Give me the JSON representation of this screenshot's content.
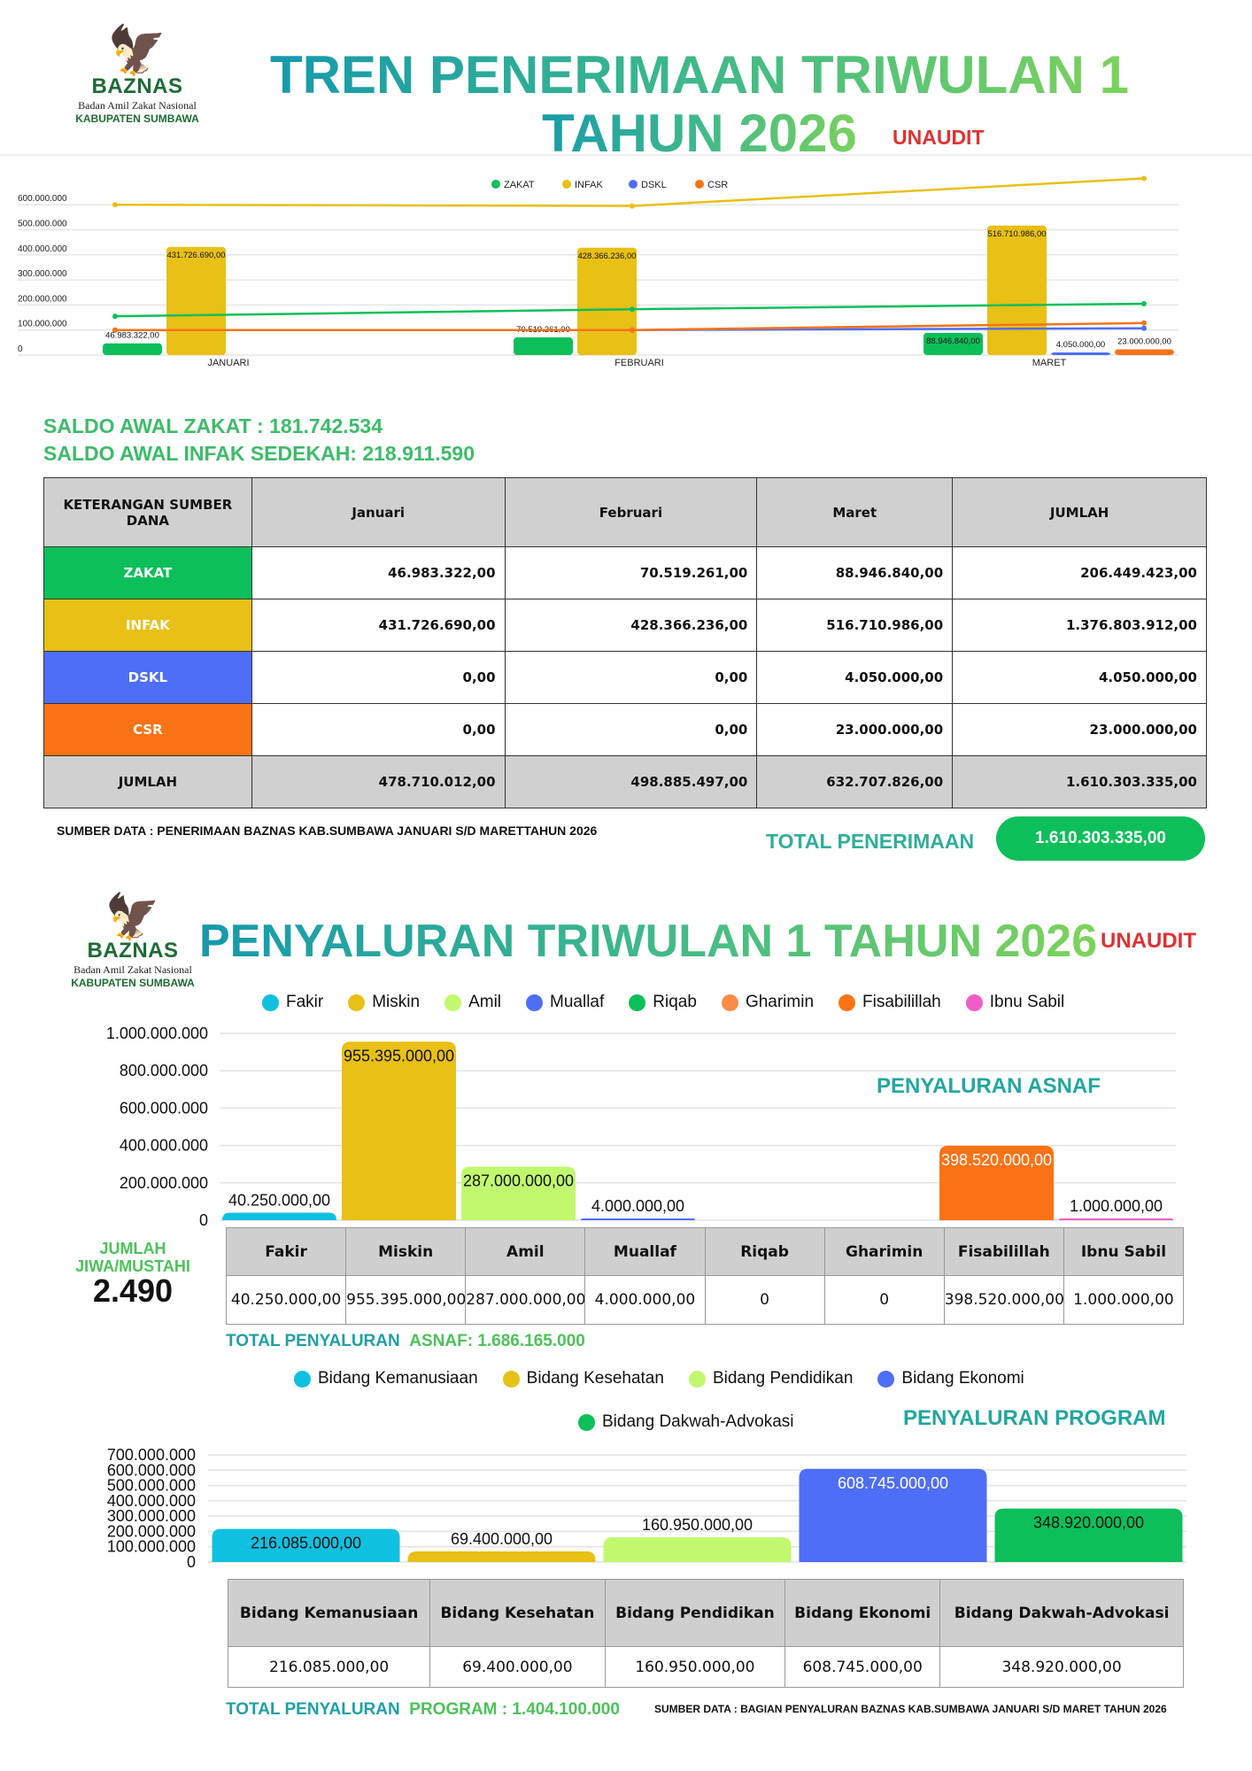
{
  "header1": {
    "title_line1": "TREN PENERIMAAN TRIWULAN 1",
    "title_line2": "TAHUN 2026",
    "status": "UNAUDIT"
  },
  "logo": {
    "name": "BAZNAS",
    "subtitle": "Badan Amil Zakat Nasional",
    "region": "KABUPATEN SUMBAWA"
  },
  "colors": {
    "zakat": "#0cbf5a",
    "infak": "#e8c016",
    "dskl": "#4f6ef7",
    "csr": "#f97316",
    "title_start": "#1599ad",
    "title_end": "#7dd35a",
    "unaudit": "#e03131"
  },
  "chart_data": [
    {
      "type": "bar",
      "categories": [
        "JANUARI",
        "FEBRUARI",
        "MARET"
      ],
      "series": [
        {
          "name": "ZAKAT",
          "color": "#0cbf5a",
          "values": [
            46983322,
            70519261,
            88946840
          ],
          "labels": [
            "46.983.322,00",
            "70.519.261,00",
            "88.946.840,00"
          ]
        },
        {
          "name": "INFAK",
          "color": "#e8c016",
          "values": [
            431726690,
            428366236,
            516710986
          ],
          "labels": [
            "431.726.690,00",
            "428.366.236,00",
            "516.710.986,00"
          ]
        },
        {
          "name": "DSKL",
          "color": "#4f6ef7",
          "values": [
            0,
            0,
            4050000
          ],
          "labels": [
            "",
            "",
            "4.050.000,00"
          ]
        },
        {
          "name": "CSR",
          "color": "#f97316",
          "values": [
            0,
            0,
            23000000
          ],
          "labels": [
            "",
            "",
            "23.000.000,00"
          ]
        }
      ],
      "lines": [
        {
          "name": "ZAKAT",
          "color": "#0cbf5a",
          "values": [
            155000000,
            183000000,
            205000000
          ]
        },
        {
          "name": "INFAK",
          "color": "#e8c016",
          "values": [
            600000000,
            595000000,
            705000000
          ]
        },
        {
          "name": "DSKL",
          "color": "#4f6ef7",
          "values": [
            100000000,
            100000000,
            107000000
          ]
        },
        {
          "name": "CSR",
          "color": "#f97316",
          "values": [
            100000000,
            100000000,
            128000000
          ]
        }
      ],
      "yticks": [
        "0",
        "100.000.000",
        "200.000.000",
        "300.000.000",
        "400.000.000",
        "500.000.000",
        "600.000.000"
      ],
      "ylim": [
        0,
        700000000
      ],
      "grid": true,
      "legend": "top-center"
    },
    {
      "type": "bar",
      "title": "PENYALURAN ASNAF",
      "categories": [
        "Fakir",
        "Miskin",
        "Amil",
        "Muallaf",
        "Riqab",
        "Gharimin",
        "Fisabilillah",
        "Ibnu Sabil"
      ],
      "colors": [
        "#10c0e0",
        "#e8c016",
        "#c2f86e",
        "#4f6ef7",
        "#0cbf5a",
        "#fb8c46",
        "#f97316",
        "#f05dc7"
      ],
      "values": [
        40250000,
        955395000,
        287000000,
        4000000,
        0,
        0,
        398520000,
        1000000
      ],
      "labels": [
        "40.250.000,00",
        "955.395.000,00",
        "287.000.000,00",
        "4.000.000,00",
        "",
        "",
        "398.520.000,00",
        "1.000.000,00"
      ],
      "yticks": [
        "0",
        "200.000.000",
        "400.000.000",
        "600.000.000",
        "800.000.000",
        "1.000.000.000"
      ],
      "ylim": [
        0,
        1000000000
      ],
      "grid": true,
      "legend": "top"
    },
    {
      "type": "bar",
      "title": "PENYALURAN PROGRAM",
      "categories": [
        "Bidang Kemanusiaan",
        "Bidang Kesehatan",
        "Bidang Pendidikan",
        "Bidang Ekonomi",
        "Bidang Dakwah-Advokasi"
      ],
      "colors": [
        "#10c0e0",
        "#e8c016",
        "#c2f86e",
        "#4f6ef7",
        "#0cbf5a"
      ],
      "values": [
        216085000,
        69400000,
        160950000,
        608745000,
        348920000
      ],
      "labels": [
        "216.085.000,00",
        "69.400.000,00",
        "160.950.000,00",
        "608.745.000,00",
        "348.920.000,00"
      ],
      "yticks": [
        "0",
        "100.000.000",
        "200.000.000",
        "300.000.000",
        "400.000.000",
        "500.000.000",
        "600.000.000",
        "700.000.000"
      ],
      "ylim": [
        0,
        700000000
      ],
      "grid": true,
      "legend": "top"
    }
  ],
  "saldo": {
    "zakat": "SALDO AWAL ZAKAT : 181.742.534",
    "infak": "SALDO AWAL INFAK SEDEKAH: 218.911.590"
  },
  "table1": {
    "headers": [
      "KETERANGAN SUMBER DANA",
      "Januari",
      "Februari",
      "Maret",
      "JUMLAH"
    ],
    "rows": [
      {
        "label": "ZAKAT",
        "color": "#0cbf5a",
        "cells": [
          "46.983.322,00",
          "70.519.261,00",
          "88.946.840,00",
          "206.449.423,00"
        ]
      },
      {
        "label": "INFAK",
        "color": "#e8c016",
        "cells": [
          "431.726.690,00",
          "428.366.236,00",
          "516.710.986,00",
          "1.376.803.912,00"
        ]
      },
      {
        "label": "DSKL",
        "color": "#4f6ef7",
        "cells": [
          "0,00",
          "0,00",
          "4.050.000,00",
          "4.050.000,00"
        ]
      },
      {
        "label": "CSR",
        "color": "#f97316",
        "cells": [
          "0,00",
          "0,00",
          "23.000.000,00",
          "23.000.000,00"
        ]
      },
      {
        "label": "JUMLAH",
        "color": "#d0d0d0",
        "cells": [
          "478.710.012,00",
          "498.885.497,00",
          "632.707.826,00",
          "1.610.303.335,00"
        ]
      }
    ]
  },
  "source1": "SUMBER DATA : PENERIMAAN BAZNAS KAB.SUMBAWA JANUARI S/D MARETTAHUN 2026",
  "total_penerimaan": {
    "label": "TOTAL PENERIMAAN",
    "value": "1.610.303.335,00"
  },
  "header2": {
    "title": "PENYALURAN TRIWULAN 1 TAHUN 2026",
    "status": "UNAUDIT"
  },
  "asnaf": {
    "section_label": "PENYALURAN ASNAF",
    "jiwa_label": "JUMLAH JIWA/MUSTAHI",
    "jiwa_value": "2.490",
    "table_headers": [
      "Fakir",
      "Miskin",
      "Amil",
      "Muallaf",
      "Riqab",
      "Gharimin",
      "Fisabilillah",
      "Ibnu Sabil"
    ],
    "table_values": [
      "40.250.000,00",
      "955.395.000,00",
      "287.000.000,00",
      "4.000.000,00",
      "0",
      "0",
      "398.520.000,00",
      "1.000.000,00"
    ],
    "total_label": "TOTAL PENYALURAN",
    "total_value": "ASNAF: 1.686.165.000"
  },
  "program": {
    "section_label": "PENYALURAN PROGRAM",
    "table_headers": [
      "Bidang Kemanusiaan",
      "Bidang Kesehatan",
      "Bidang Pendidikan",
      "Bidang Ekonomi",
      "Bidang Dakwah-Advokasi"
    ],
    "table_values": [
      "216.085.000,00",
      "69.400.000,00",
      "160.950.000,00",
      "608.745.000,00",
      "348.920.000,00"
    ],
    "total_label": "TOTAL PENYALURAN",
    "total_value": "PROGRAM : 1.404.100.000",
    "source": "SUMBER DATA : BAGIAN PENYALURAN BAZNAS KAB.SUMBAWA JANUARI S/D MARET TAHUN 2026"
  }
}
